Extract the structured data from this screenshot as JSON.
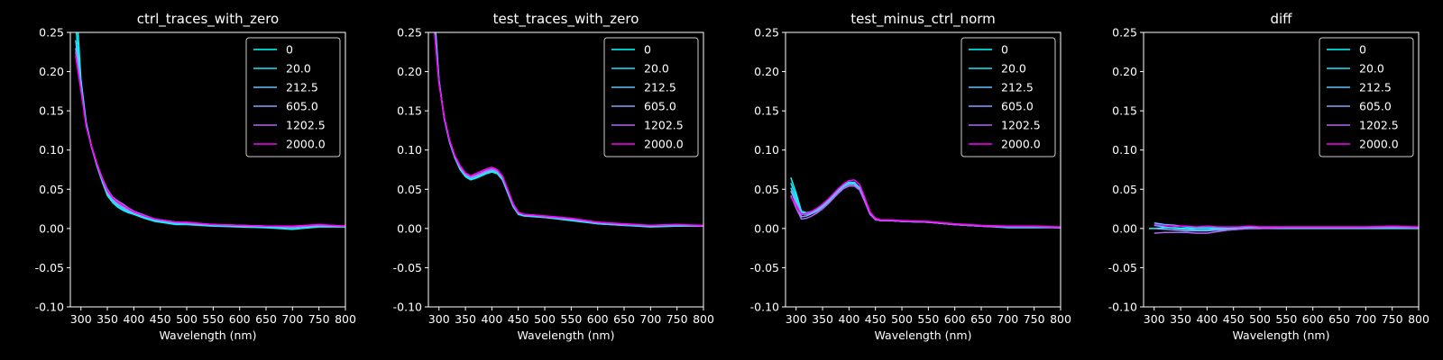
{
  "figure": {
    "background": "#000000",
    "foreground": "#ffffff"
  },
  "series_colors": [
    "#00ffff",
    "#1ae5f9",
    "#5ec4ff",
    "#7aa8ff",
    "#b066f0",
    "#ff00ff"
  ],
  "chart_data": [
    {
      "type": "line",
      "title": "ctrl_traces_with_zero",
      "xlabel": "Wavelength (nm)",
      "ylabel": "",
      "xlim": [
        280,
        800
      ],
      "ylim": [
        -0.1,
        0.25
      ],
      "xticks": [
        300,
        350,
        400,
        450,
        500,
        550,
        600,
        650,
        700,
        750,
        800
      ],
      "yticks": [
        -0.1,
        -0.05,
        0.0,
        0.05,
        0.1,
        0.15,
        0.2,
        0.25
      ],
      "x": [
        290,
        300,
        310,
        320,
        330,
        340,
        350,
        360,
        370,
        380,
        390,
        400,
        420,
        440,
        460,
        480,
        500,
        550,
        600,
        650,
        700,
        750,
        800
      ],
      "legend": "top-right",
      "grid": false,
      "series": [
        {
          "name": "0",
          "values": [
            0.3,
            0.19,
            0.135,
            0.105,
            0.08,
            0.06,
            0.042,
            0.033,
            0.027,
            0.023,
            0.02,
            0.018,
            0.013,
            0.009,
            0.007,
            0.005,
            0.005,
            0.003,
            0.002,
            0.001,
            -0.001,
            0.002,
            0.002
          ]
        },
        {
          "name": "20.0",
          "values": [
            0.26,
            0.185,
            0.133,
            0.104,
            0.081,
            0.061,
            0.044,
            0.034,
            0.028,
            0.024,
            0.021,
            0.019,
            0.014,
            0.01,
            0.008,
            0.006,
            0.006,
            0.004,
            0.003,
            0.002,
            0.001,
            0.003,
            0.003
          ]
        },
        {
          "name": "212.5",
          "values": [
            0.24,
            0.182,
            0.132,
            0.104,
            0.081,
            0.062,
            0.045,
            0.036,
            0.03,
            0.026,
            0.022,
            0.02,
            0.015,
            0.011,
            0.009,
            0.007,
            0.006,
            0.004,
            0.003,
            0.002,
            0.001,
            0.003,
            0.003
          ]
        },
        {
          "name": "605.0",
          "values": [
            0.23,
            0.18,
            0.131,
            0.104,
            0.082,
            0.063,
            0.047,
            0.038,
            0.032,
            0.028,
            0.024,
            0.021,
            0.016,
            0.012,
            0.01,
            0.008,
            0.007,
            0.005,
            0.004,
            0.003,
            0.002,
            0.004,
            0.003
          ]
        },
        {
          "name": "1202.5",
          "values": [
            0.225,
            0.178,
            0.131,
            0.105,
            0.083,
            0.065,
            0.05,
            0.04,
            0.035,
            0.031,
            0.026,
            0.022,
            0.017,
            0.012,
            0.01,
            0.008,
            0.007,
            0.005,
            0.004,
            0.003,
            0.002,
            0.004,
            0.003
          ]
        },
        {
          "name": "2000.0",
          "values": [
            0.22,
            0.176,
            0.13,
            0.105,
            0.083,
            0.064,
            0.048,
            0.039,
            0.033,
            0.029,
            0.025,
            0.021,
            0.016,
            0.012,
            0.01,
            0.008,
            0.008,
            0.005,
            0.004,
            0.003,
            0.003,
            0.005,
            0.003
          ]
        }
      ]
    },
    {
      "type": "line",
      "title": "test_traces_with_zero",
      "xlabel": "Wavelength (nm)",
      "ylabel": "",
      "xlim": [
        280,
        800
      ],
      "ylim": [
        -0.1,
        0.25
      ],
      "xticks": [
        300,
        350,
        400,
        450,
        500,
        550,
        600,
        650,
        700,
        750,
        800
      ],
      "yticks": [
        -0.1,
        -0.05,
        0.0,
        0.05,
        0.1,
        0.15,
        0.2,
        0.25
      ],
      "x": [
        290,
        300,
        310,
        320,
        330,
        340,
        350,
        360,
        370,
        380,
        390,
        400,
        410,
        420,
        430,
        440,
        450,
        460,
        480,
        500,
        550,
        600,
        650,
        700,
        750,
        800
      ],
      "legend": "top-right",
      "grid": false,
      "series": [
        {
          "name": "0",
          "values": [
            0.29,
            0.19,
            0.14,
            0.11,
            0.09,
            0.075,
            0.066,
            0.062,
            0.064,
            0.067,
            0.07,
            0.072,
            0.07,
            0.062,
            0.045,
            0.028,
            0.018,
            0.016,
            0.015,
            0.014,
            0.01,
            0.006,
            0.004,
            0.002,
            0.003,
            0.003
          ]
        },
        {
          "name": "20.0",
          "values": [
            0.28,
            0.188,
            0.14,
            0.11,
            0.09,
            0.076,
            0.067,
            0.063,
            0.065,
            0.068,
            0.071,
            0.073,
            0.071,
            0.063,
            0.046,
            0.029,
            0.019,
            0.016,
            0.015,
            0.014,
            0.011,
            0.006,
            0.004,
            0.003,
            0.004,
            0.003
          ]
        },
        {
          "name": "212.5",
          "values": [
            0.275,
            0.188,
            0.141,
            0.111,
            0.091,
            0.077,
            0.068,
            0.064,
            0.066,
            0.069,
            0.072,
            0.074,
            0.072,
            0.064,
            0.047,
            0.03,
            0.019,
            0.017,
            0.016,
            0.015,
            0.011,
            0.007,
            0.005,
            0.003,
            0.004,
            0.003
          ]
        },
        {
          "name": "605.0",
          "values": [
            0.27,
            0.187,
            0.141,
            0.112,
            0.092,
            0.078,
            0.069,
            0.065,
            0.067,
            0.07,
            0.073,
            0.075,
            0.073,
            0.065,
            0.048,
            0.03,
            0.02,
            0.017,
            0.016,
            0.015,
            0.012,
            0.007,
            0.005,
            0.003,
            0.004,
            0.003
          ]
        },
        {
          "name": "1202.5",
          "values": [
            0.265,
            0.186,
            0.142,
            0.112,
            0.092,
            0.079,
            0.07,
            0.066,
            0.068,
            0.071,
            0.074,
            0.076,
            0.074,
            0.066,
            0.049,
            0.031,
            0.02,
            0.018,
            0.017,
            0.015,
            0.012,
            0.008,
            0.005,
            0.004,
            0.005,
            0.003
          ]
        },
        {
          "name": "2000.0",
          "values": [
            0.262,
            0.185,
            0.142,
            0.113,
            0.093,
            0.08,
            0.071,
            0.067,
            0.07,
            0.073,
            0.076,
            0.078,
            0.075,
            0.067,
            0.05,
            0.032,
            0.021,
            0.018,
            0.017,
            0.016,
            0.013,
            0.008,
            0.006,
            0.004,
            0.005,
            0.004
          ]
        }
      ]
    },
    {
      "type": "line",
      "title": "test_minus_ctrl_norm",
      "xlabel": "Wavelength (nm)",
      "ylabel": "",
      "xlim": [
        280,
        800
      ],
      "ylim": [
        -0.1,
        0.25
      ],
      "xticks": [
        300,
        350,
        400,
        450,
        500,
        550,
        600,
        650,
        700,
        750,
        800
      ],
      "yticks": [
        -0.1,
        -0.05,
        0.0,
        0.05,
        0.1,
        0.15,
        0.2,
        0.25
      ],
      "x": [
        290,
        300,
        310,
        320,
        330,
        340,
        350,
        360,
        370,
        380,
        390,
        400,
        410,
        420,
        430,
        440,
        450,
        460,
        480,
        500,
        550,
        600,
        650,
        700,
        750,
        800
      ],
      "legend": "top-right",
      "grid": false,
      "series": [
        {
          "name": "0",
          "values": [
            0.065,
            0.045,
            0.022,
            0.02,
            0.022,
            0.025,
            0.03,
            0.036,
            0.043,
            0.05,
            0.056,
            0.059,
            0.059,
            0.052,
            0.035,
            0.018,
            0.012,
            0.01,
            0.01,
            0.009,
            0.008,
            0.005,
            0.003,
            0.001,
            0.001,
            0.001
          ]
        },
        {
          "name": "20.0",
          "values": [
            0.058,
            0.04,
            0.02,
            0.019,
            0.021,
            0.024,
            0.029,
            0.035,
            0.042,
            0.049,
            0.055,
            0.058,
            0.058,
            0.052,
            0.035,
            0.018,
            0.012,
            0.01,
            0.01,
            0.009,
            0.008,
            0.005,
            0.003,
            0.002,
            0.002,
            0.001
          ]
        },
        {
          "name": "212.5",
          "values": [
            0.052,
            0.036,
            0.018,
            0.018,
            0.02,
            0.023,
            0.028,
            0.034,
            0.041,
            0.048,
            0.054,
            0.057,
            0.057,
            0.051,
            0.035,
            0.018,
            0.012,
            0.01,
            0.01,
            0.009,
            0.008,
            0.005,
            0.003,
            0.002,
            0.002,
            0.001
          ]
        },
        {
          "name": "605.0",
          "values": [
            0.048,
            0.032,
            0.015,
            0.016,
            0.019,
            0.022,
            0.027,
            0.033,
            0.04,
            0.047,
            0.053,
            0.056,
            0.056,
            0.05,
            0.034,
            0.018,
            0.012,
            0.01,
            0.01,
            0.009,
            0.008,
            0.005,
            0.003,
            0.002,
            0.002,
            0.001
          ]
        },
        {
          "name": "1202.5",
          "values": [
            0.042,
            0.026,
            0.012,
            0.013,
            0.016,
            0.02,
            0.025,
            0.031,
            0.038,
            0.045,
            0.051,
            0.054,
            0.054,
            0.049,
            0.034,
            0.018,
            0.011,
            0.01,
            0.01,
            0.009,
            0.008,
            0.005,
            0.003,
            0.002,
            0.002,
            0.001
          ]
        },
        {
          "name": "2000.0",
          "values": [
            0.04,
            0.03,
            0.018,
            0.019,
            0.022,
            0.026,
            0.031,
            0.037,
            0.044,
            0.051,
            0.057,
            0.061,
            0.062,
            0.056,
            0.039,
            0.021,
            0.013,
            0.011,
            0.011,
            0.01,
            0.009,
            0.006,
            0.004,
            0.003,
            0.003,
            0.002
          ]
        }
      ]
    },
    {
      "type": "line",
      "title": "diff",
      "xlabel": "Wavelength (nm)",
      "ylabel": "",
      "xlim": [
        280,
        800
      ],
      "ylim": [
        -0.1,
        0.25
      ],
      "xticks": [
        300,
        350,
        400,
        450,
        500,
        550,
        600,
        650,
        700,
        750,
        800
      ],
      "yticks": [
        -0.1,
        -0.05,
        0.0,
        0.05,
        0.1,
        0.15,
        0.2,
        0.25
      ],
      "x": [
        290,
        300,
        320,
        340,
        360,
        380,
        400,
        420,
        440,
        460,
        480,
        500,
        550,
        600,
        650,
        700,
        750,
        800
      ],
      "legend": "top-right",
      "grid": false,
      "series": [
        {
          "name": "0",
          "values": [
            0.0,
            0.0,
            0.001,
            0.001,
            0.0,
            0.0,
            0.0,
            0.0,
            0.0,
            0.0,
            0.0,
            0.0,
            0.0,
            0.0,
            0.0,
            0.0,
            0.0,
            0.0
          ]
        },
        {
          "name": "20.0",
          "values": [
            null,
            0.007,
            0.005,
            0.004,
            0.002,
            0.001,
            0.001,
            0.001,
            0.0,
            0.001,
            0.002,
            0.002,
            0.002,
            0.002,
            0.002,
            0.002,
            0.002,
            0.001
          ]
        },
        {
          "name": "212.5",
          "values": [
            null,
            0.004,
            0.002,
            0.0,
            -0.001,
            -0.002,
            -0.002,
            -0.001,
            -0.001,
            0.0,
            0.001,
            0.001,
            0.001,
            0.001,
            0.001,
            0.001,
            0.002,
            0.001
          ]
        },
        {
          "name": "605.0",
          "values": [
            null,
            0.0,
            -0.001,
            -0.002,
            -0.003,
            -0.003,
            -0.003,
            -0.002,
            -0.002,
            -0.001,
            0.0,
            0.0,
            0.001,
            0.001,
            0.001,
            0.001,
            0.001,
            0.001
          ]
        },
        {
          "name": "1202.5",
          "values": [
            null,
            -0.006,
            -0.005,
            -0.005,
            -0.005,
            -0.006,
            -0.006,
            -0.004,
            -0.002,
            -0.001,
            0.0,
            0.0,
            0.001,
            0.001,
            0.001,
            0.001,
            0.002,
            0.001
          ]
        },
        {
          "name": "2000.0",
          "values": [
            null,
            0.005,
            0.004,
            0.003,
            0.003,
            0.002,
            0.003,
            0.002,
            0.002,
            0.002,
            0.003,
            0.002,
            0.002,
            0.002,
            0.002,
            0.002,
            0.003,
            0.002
          ]
        }
      ]
    }
  ]
}
